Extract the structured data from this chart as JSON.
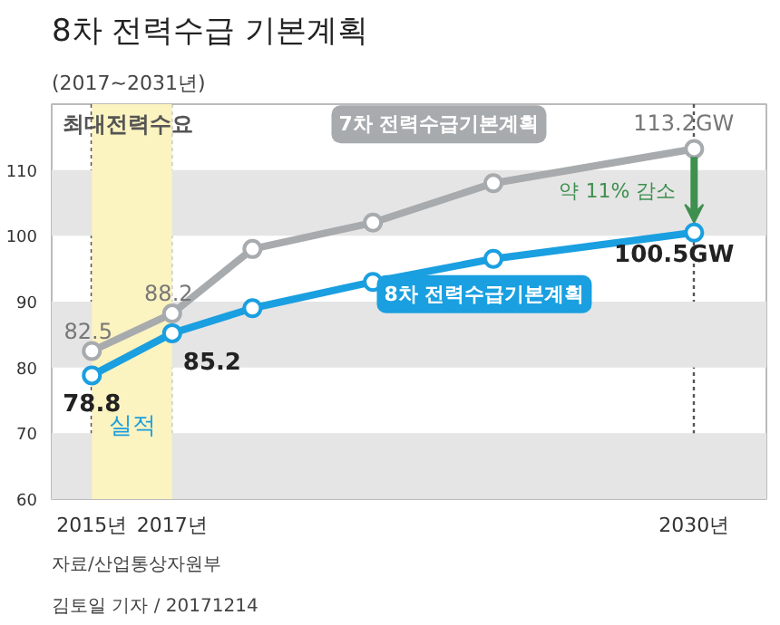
{
  "chart_data": {
    "type": "line",
    "title": "8차 전력수급 기본계획",
    "subtitle": "(2017~2031년)",
    "x": [
      2015,
      2017,
      2019,
      2022,
      2025,
      2030
    ],
    "series": [
      {
        "name": "7차 전력수급기본계획",
        "color": "#a7abae",
        "values": [
          82.5,
          88.2,
          98,
          102,
          108,
          113.2
        ],
        "value_labels": [
          "82.5",
          "88.2",
          null,
          null,
          null,
          "113.2GW"
        ]
      },
      {
        "name": "8차 전력수급기본계획",
        "color": "#1a9fe0",
        "values": [
          78.8,
          85.2,
          89,
          93,
          96.5,
          100.5
        ],
        "value_labels": [
          "78.8",
          "85.2",
          null,
          null,
          null,
          "100.5GW"
        ]
      }
    ],
    "xlim": [
      2014,
      2031.8
    ],
    "ylim": [
      60,
      120
    ],
    "xticks": [
      {
        "value": 2015,
        "label": "2015년"
      },
      {
        "value": 2017,
        "label": "2017년"
      },
      {
        "value": 2030,
        "label": "2030년"
      }
    ],
    "yticks": [
      60,
      70,
      80,
      90,
      100,
      110
    ],
    "bands": [
      {
        "axis": "y",
        "from": 60,
        "to": 70,
        "color": "#e5e5e5"
      },
      {
        "axis": "y",
        "from": 80,
        "to": 90,
        "color": "#e5e5e5"
      },
      {
        "axis": "y",
        "from": 100,
        "to": 110,
        "color": "#e5e5e5"
      },
      {
        "axis": "x",
        "from": 2015,
        "to": 2017,
        "color": "#fbf3c0",
        "label": "실적"
      }
    ],
    "grid": "x",
    "marker": "circle",
    "line_style": "solid",
    "annotations": [
      "최대전력수요",
      "약 11% 감소",
      "자료/산업통상자원부",
      "김토일 기자 / 20171214"
    ]
  }
}
